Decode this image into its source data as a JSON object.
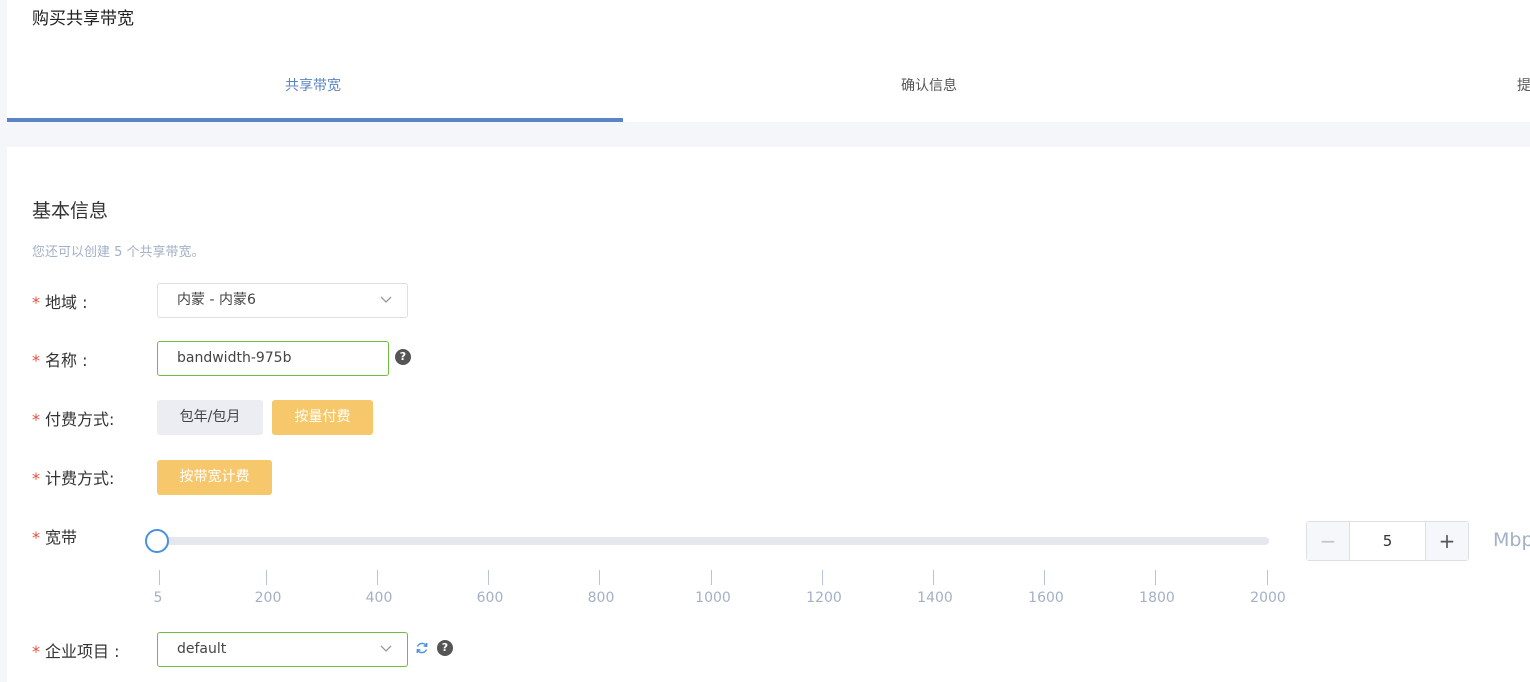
{
  "page": {
    "title": "购买共享带宽"
  },
  "steps": [
    {
      "label": "共享带宽",
      "active": true
    },
    {
      "label": "确认信息",
      "active": false
    },
    {
      "label": "提",
      "active": false
    }
  ],
  "section": {
    "title": "基本信息",
    "hint": "您还可以创建 5 个共享带宽。"
  },
  "form": {
    "required_mark": "*",
    "region": {
      "label": "地域 :",
      "value": "内蒙 - 内蒙6"
    },
    "name": {
      "label": "名称 :",
      "value": "bandwidth-975b"
    },
    "billing": {
      "label": "付费方式:",
      "options": [
        "包年/包月",
        "按量付费"
      ],
      "selected": "按量付费"
    },
    "charge": {
      "label": "计费方式:",
      "option": "按带宽计费"
    },
    "bandwidth": {
      "label": "宽带",
      "value": "5",
      "min": 5,
      "max": 2000,
      "ticks": [
        "5",
        "200",
        "400",
        "600",
        "800",
        "1000",
        "1200",
        "1400",
        "1600",
        "1800",
        "2000"
      ],
      "minus": "−",
      "plus": "+",
      "unit": "Mbps"
    },
    "project": {
      "label": "企业项目 :",
      "value": "default"
    }
  },
  "icons": {
    "help": "question-circle-icon",
    "dropdown": "chevron-down-icon",
    "refresh": "refresh-icon"
  },
  "colors": {
    "accent": "#5b84c4",
    "required": "#e84c3d",
    "selected_button": "#f6c86b",
    "valid_border": "#6cbf3c"
  }
}
